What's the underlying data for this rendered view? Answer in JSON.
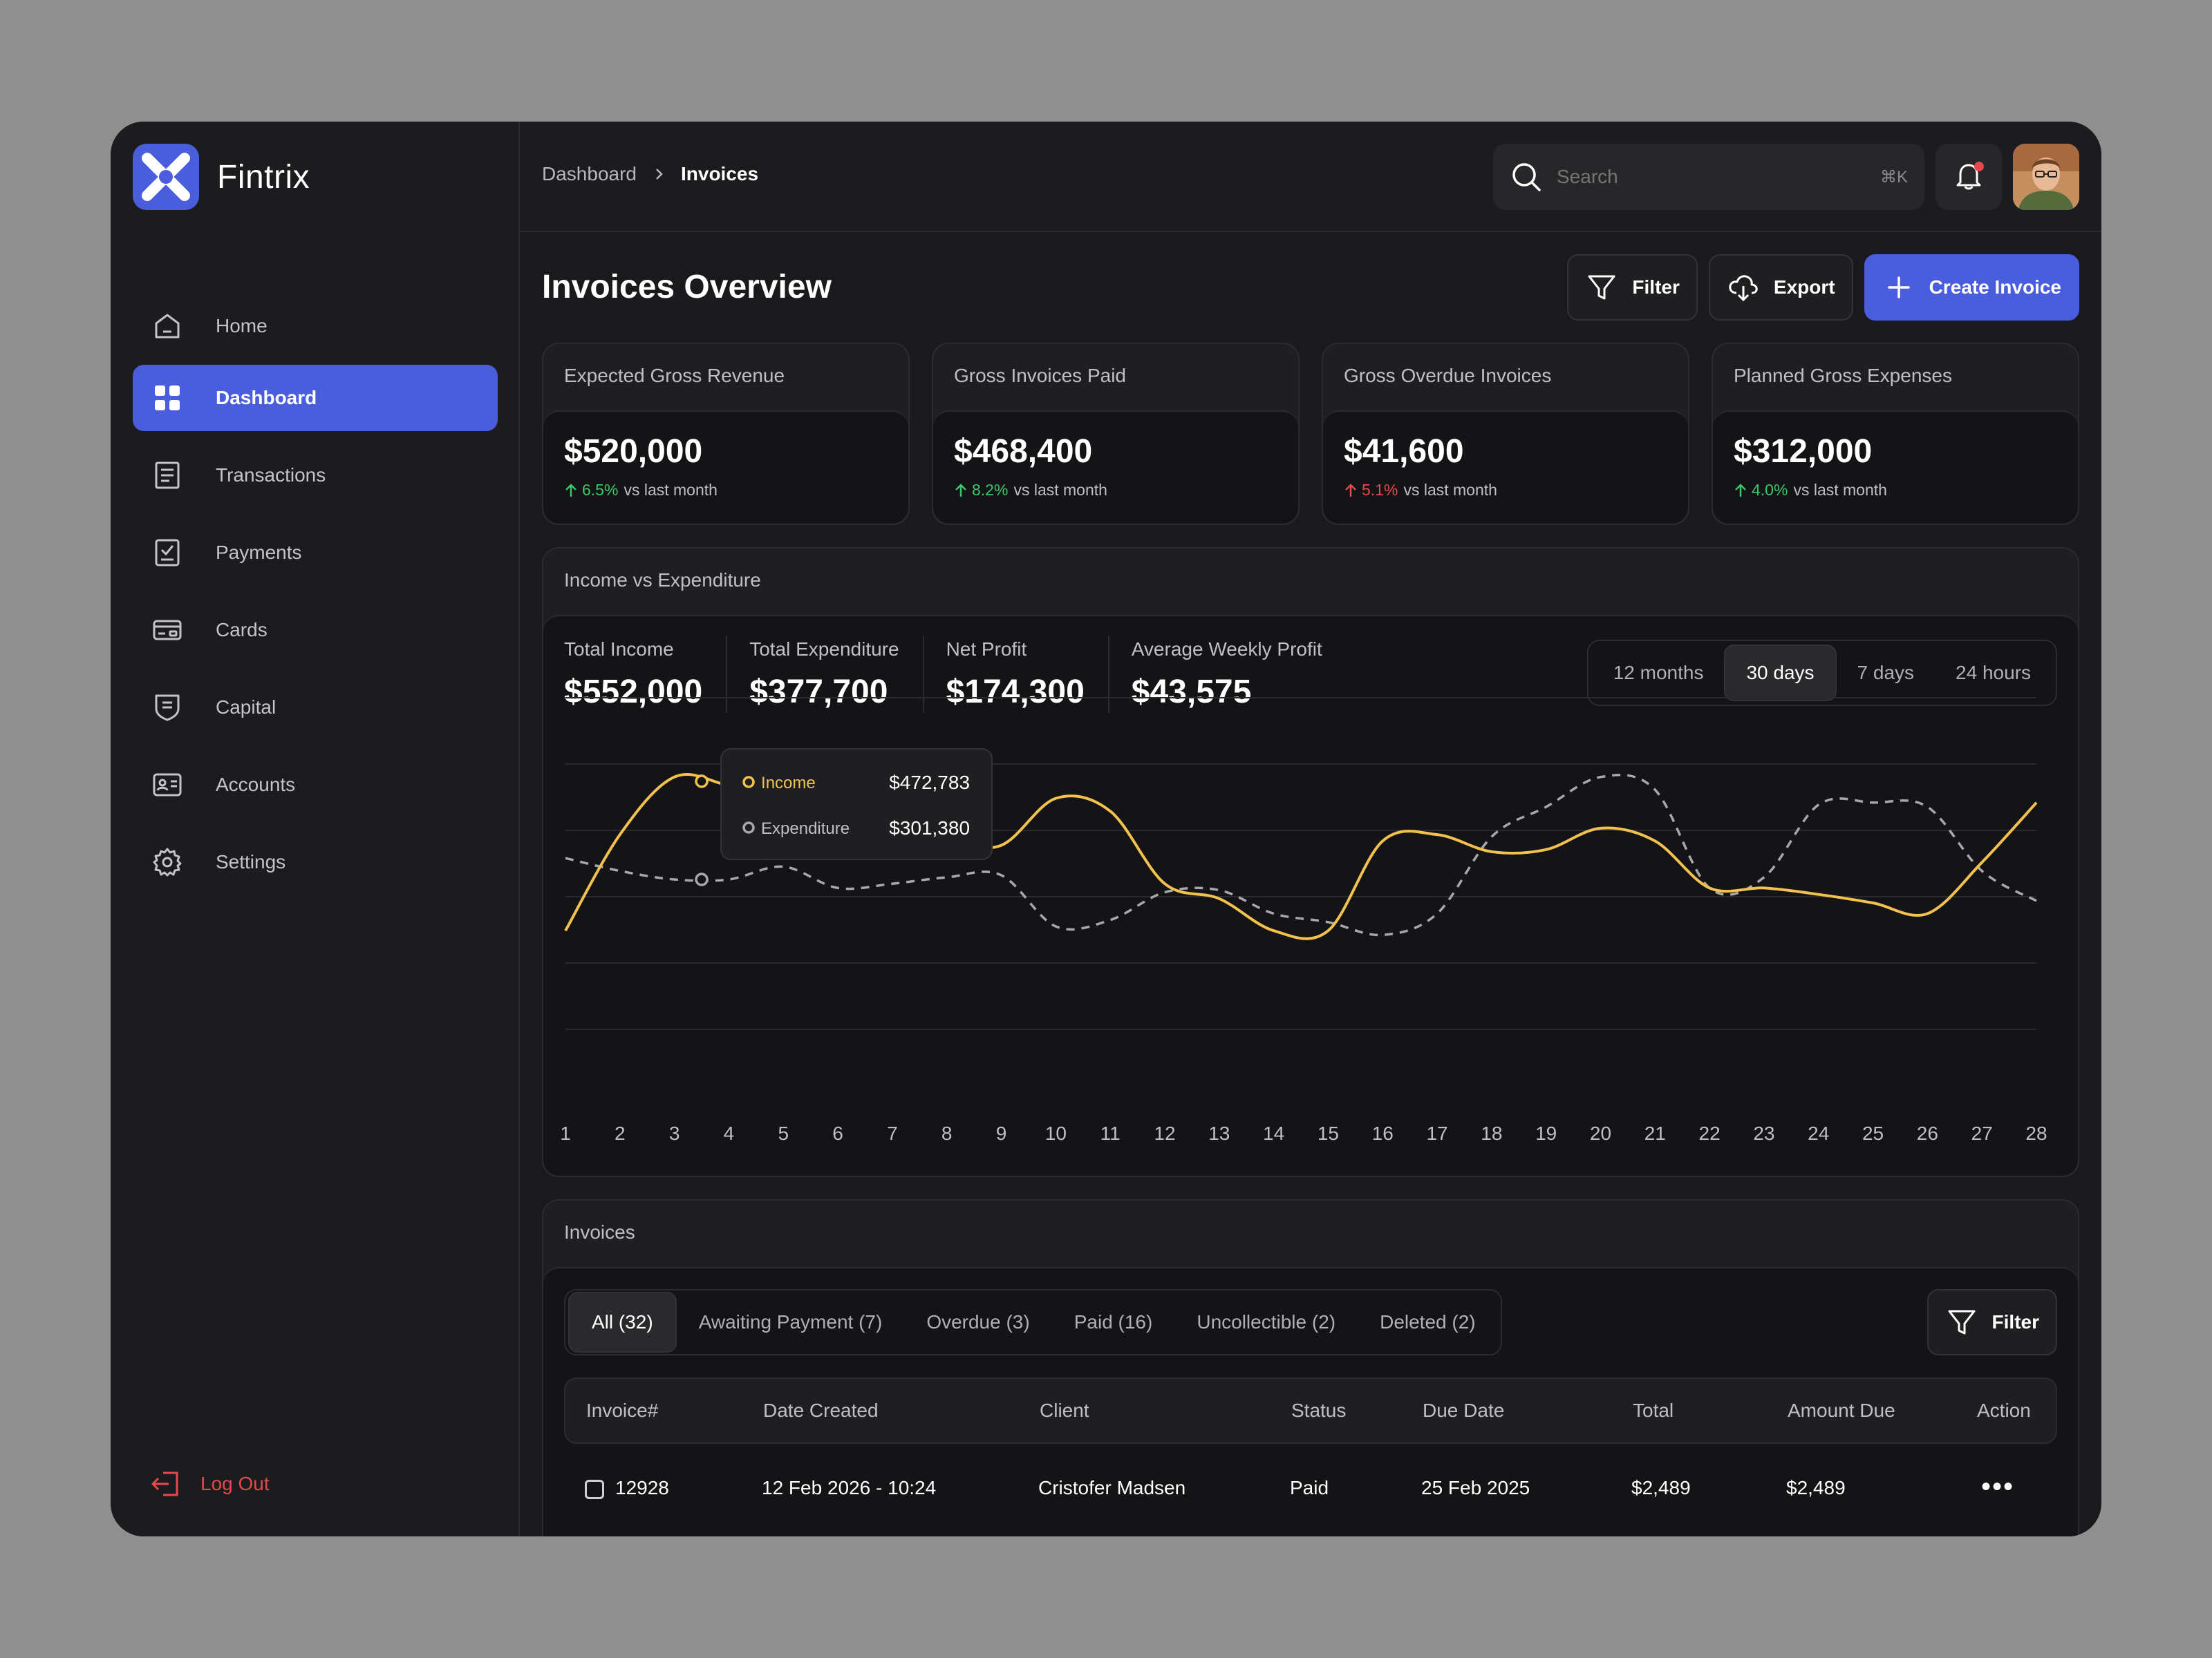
{
  "brand": {
    "name": "Fintrix"
  },
  "sidebar": {
    "items": [
      {
        "label": "Home",
        "icon": "home-icon"
      },
      {
        "label": "Dashboard",
        "icon": "grid-icon"
      },
      {
        "label": "Transactions",
        "icon": "receipt-icon"
      },
      {
        "label": "Payments",
        "icon": "payment-check-icon"
      },
      {
        "label": "Cards",
        "icon": "card-icon"
      },
      {
        "label": "Capital",
        "icon": "shield-icon"
      },
      {
        "label": "Accounts",
        "icon": "id-card-icon"
      },
      {
        "label": "Settings",
        "icon": "gear-icon"
      }
    ],
    "active": "Dashboard",
    "logout": "Log Out"
  },
  "topbar": {
    "breadcrumb": [
      "Dashboard",
      "Invoices"
    ],
    "search_placeholder": "Search",
    "search_shortcut": "⌘K"
  },
  "page": {
    "title": "Invoices Overview",
    "filter_label": "Filter",
    "export_label": "Export",
    "create_label": "Create Invoice"
  },
  "stats": [
    {
      "label": "Expected Gross Revenue",
      "value": "$520,000",
      "delta": "6.5%",
      "direction": "up",
      "suffix": "vs last month"
    },
    {
      "label": "Gross Invoices Paid",
      "value": "$468,400",
      "delta": "8.2%",
      "direction": "up",
      "suffix": "vs last month"
    },
    {
      "label": "Gross Overdue Invoices",
      "value": "$41,600",
      "delta": "5.1%",
      "direction": "down",
      "suffix": "vs last month"
    },
    {
      "label": "Planned Gross Expenses",
      "value": "$312,000",
      "delta": "4.0%",
      "direction": "up",
      "suffix": "vs last month"
    }
  ],
  "colors": {
    "accent": "#4a5ddc",
    "income": "#f2c14e",
    "expenditure": "#a8a8ac",
    "positive": "#3cc76a",
    "negative": "#e5484d"
  },
  "chart_panel": {
    "title": "Income vs Expenditure",
    "kpis": [
      {
        "label": "Total Income",
        "value": "$552,000"
      },
      {
        "label": "Total Expenditure",
        "value": "$377,700"
      },
      {
        "label": "Net Profit",
        "value": "$174,300"
      },
      {
        "label": "Average Weekly Profit",
        "value": "$43,575"
      }
    ],
    "ranges": [
      "12 months",
      "30 days",
      "7 days",
      "24 hours"
    ],
    "active_range": "30 days",
    "tooltip": {
      "day": 3.5,
      "income_label": "Income",
      "income_value": "$472,783",
      "expenditure_label": "Expenditure",
      "expenditure_value": "$301,380"
    }
  },
  "chart_data": {
    "type": "line",
    "x": [
      1,
      2,
      3,
      4,
      5,
      6,
      7,
      8,
      9,
      10,
      11,
      12,
      13,
      14,
      15,
      16,
      17,
      18,
      19,
      20,
      21,
      22,
      23,
      24,
      25,
      26,
      27,
      28
    ],
    "series": [
      {
        "name": "Income",
        "style": "solid",
        "values": [
          0.2,
          0.65,
          0.92,
          0.88,
          0.83,
          0.74,
          0.65,
          0.62,
          0.6,
          0.82,
          0.76,
          0.42,
          0.35,
          0.2,
          0.2,
          0.62,
          0.65,
          0.57,
          0.58,
          0.68,
          0.62,
          0.4,
          0.4,
          0.37,
          0.33,
          0.28,
          0.52,
          0.8
        ]
      },
      {
        "name": "Expenditure",
        "style": "dashed",
        "values": [
          0.54,
          0.48,
          0.44,
          0.44,
          0.5,
          0.4,
          0.42,
          0.45,
          0.46,
          0.22,
          0.25,
          0.38,
          0.39,
          0.28,
          0.24,
          0.18,
          0.28,
          0.64,
          0.78,
          0.92,
          0.86,
          0.4,
          0.45,
          0.79,
          0.8,
          0.78,
          0.48,
          0.34
        ]
      }
    ],
    "xlim": [
      1,
      28
    ],
    "ylim": [
      0,
      1
    ],
    "grid": true,
    "legend": "tooltip"
  },
  "invoices": {
    "title": "Invoices",
    "tabs": [
      "All (32)",
      "Awaiting Payment (7)",
      "Overdue (3)",
      "Paid (16)",
      "Uncollectible (2)",
      "Deleted (2)"
    ],
    "active_tab": "All (32)",
    "filter_label": "Filter",
    "columns": [
      "Invoice#",
      "Date Created",
      "Client",
      "Status",
      "Due Date",
      "Total",
      "Amount Due",
      "Action"
    ],
    "rows": [
      {
        "invoice": "12928",
        "date": "12 Feb 2026 - 10:24",
        "client": "Cristofer Madsen",
        "status": "Paid",
        "due": "25 Feb 2025",
        "total": "$2,489",
        "amount_due": "$2,489",
        "action": "•••"
      }
    ]
  }
}
